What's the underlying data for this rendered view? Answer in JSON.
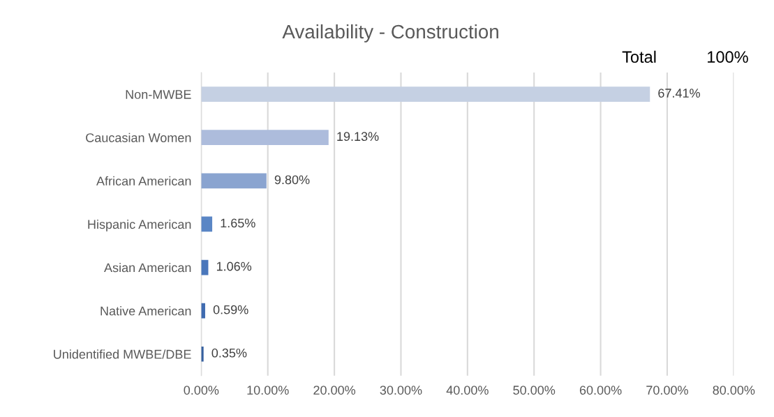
{
  "chart_data": {
    "type": "bar",
    "orientation": "horizontal",
    "title": "Availability - Construction",
    "categories": [
      "Non-MWBE",
      "Caucasian Women",
      "African American",
      "Hispanic American",
      "Asian American",
      "Native American",
      "Unidentified MWBE/DBE"
    ],
    "values": [
      67.41,
      19.13,
      9.8,
      1.65,
      1.06,
      0.59,
      0.35
    ],
    "value_labels": [
      "67.41%",
      "19.13%",
      "9.80%",
      "1.65%",
      "1.06%",
      "0.59%",
      "0.35%"
    ],
    "colors": [
      "#c5d0e3",
      "#adbcdc",
      "#8aa4d0",
      "#5a86c5",
      "#4a77bb",
      "#3f6bb0",
      "#36609f"
    ],
    "xlim": [
      0,
      80
    ],
    "xticks": [
      {
        "value": 0,
        "label": "0.00%"
      },
      {
        "value": 10,
        "label": "10.00%"
      },
      {
        "value": 20,
        "label": "20.00%"
      },
      {
        "value": 30,
        "label": "30.00%"
      },
      {
        "value": 40,
        "label": "40.00%"
      },
      {
        "value": 50,
        "label": "50.00%"
      },
      {
        "value": 60,
        "label": "60.00%"
      },
      {
        "value": 70,
        "label": "70.00%"
      },
      {
        "value": 80,
        "label": "80.00%"
      }
    ],
    "grid": "x",
    "legend": false,
    "annotations": [
      "Total",
      "100%"
    ]
  }
}
